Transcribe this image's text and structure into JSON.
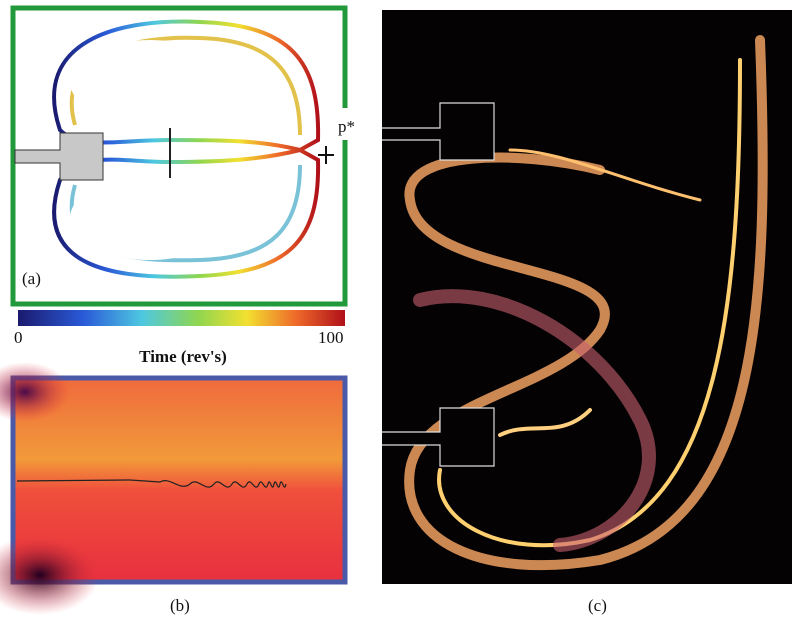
{
  "panels": [
    {
      "label": "(a)",
      "annotation": "p*",
      "colorbar": {
        "title": "Time (rev's)",
        "min_label": "0",
        "max_label": "100"
      }
    },
    {
      "label": "(b)"
    },
    {
      "label": "(c)"
    }
  ]
}
